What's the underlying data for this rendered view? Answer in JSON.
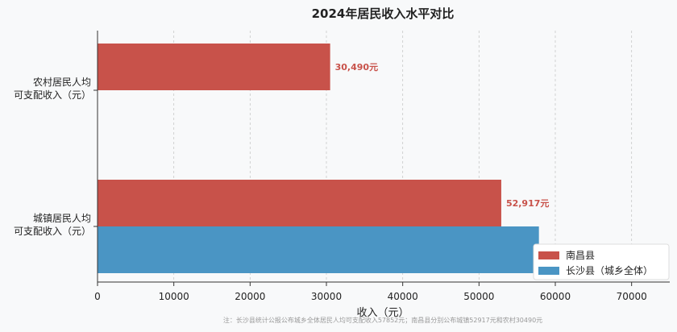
{
  "chart_data": {
    "type": "bar",
    "orientation": "horizontal",
    "title": "2024年居民收入水平对比",
    "xlabel": "收入（元）",
    "ylabel": "",
    "xlim": [
      0,
      75000
    ],
    "xticks": [
      0,
      10000,
      20000,
      30000,
      40000,
      50000,
      60000,
      70000
    ],
    "grid": true,
    "legend_position": "bottom-right",
    "categories": [
      {
        "lines": [
          "农村居民人均",
          "可支配收入（元）"
        ]
      },
      {
        "lines": [
          "城镇居民人均",
          "可支配收入（元）"
        ]
      }
    ],
    "series": [
      {
        "name": "南昌县",
        "color": "#c8524a",
        "values": [
          30490,
          52917
        ],
        "labels": [
          "30,490元",
          "52,917元"
        ]
      },
      {
        "name": "长沙县（城乡全体）",
        "color": "#4a95c4",
        "values": [
          null,
          57852
        ],
        "labels": [
          null,
          "57,852元"
        ]
      }
    ],
    "footnote": "注：长沙县统计公报公布城乡全体居民人均可支配收入57852元；南昌县分别公布城镇52917元和农村30490元"
  }
}
